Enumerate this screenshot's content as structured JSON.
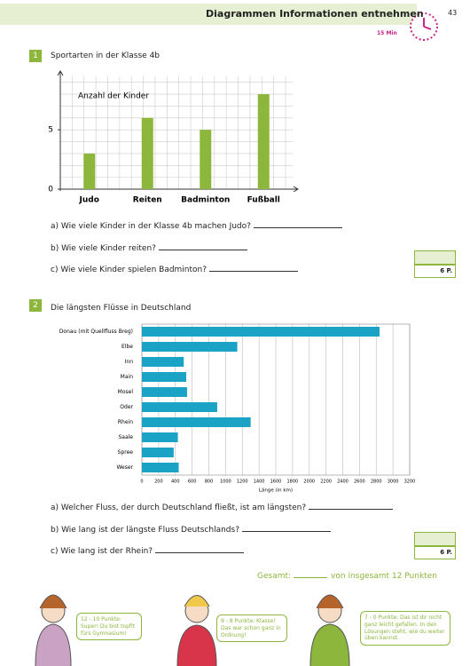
{
  "header": {
    "title": "Diagrammen Informationen entnehmen",
    "time": "15 Min",
    "page": "43"
  },
  "task1": {
    "number": "1",
    "title": "Sportarten in der Klasse 4b",
    "questions": [
      "a) Wie viele Kinder in der Klasse 4b machen Judo?",
      "b) Wie viele Kinder reiten?",
      "c) Wie viele Kinder spielen Badminton?"
    ],
    "score": "6 P."
  },
  "task2": {
    "number": "2",
    "title": "Die längsten Flüsse in Deutschland",
    "questions": [
      "a) Welcher Fluss, der durch Deutschland fließt, ist am längsten?",
      "b) Wie lang ist der längste Fluss Deutschlands?",
      "c) Wie lang ist der Rhein?"
    ],
    "score": "6 P."
  },
  "chart_data": [
    {
      "type": "bar",
      "ylabel": "Anzahl der Kinder",
      "categories": [
        "Judo",
        "Reiten",
        "Badminton",
        "Fußball"
      ],
      "values": [
        3,
        6,
        5,
        8
      ],
      "color": "#8db63c",
      "ylim": [
        0,
        9.5
      ],
      "yticks": [
        0,
        5
      ],
      "grid": true
    },
    {
      "type": "hbar",
      "xlabel": "Länge (in km)",
      "categories": [
        "Donau (mit Quellfluss Breg)",
        "Elbe",
        "Inn",
        "Main",
        "Mosel",
        "Oder",
        "Rhein",
        "Saale",
        "Spree",
        "Weser"
      ],
      "values": [
        2840,
        1140,
        500,
        530,
        540,
        900,
        1300,
        430,
        380,
        440
      ],
      "color": "#1ba3c6",
      "xlim": [
        0,
        3200
      ],
      "xticks": [
        0,
        200,
        400,
        600,
        800,
        1000,
        1200,
        1400,
        1600,
        1800,
        2000,
        2200,
        2400,
        2600,
        2800,
        3000,
        3200
      ],
      "grid": true
    }
  ],
  "footer": {
    "total_label": "Gesamt:",
    "total_text": "von insgesamt 12 Punkten",
    "feedback": [
      "12 - 10 Punkte: Super! Du bist topfit fürs Gymnasium!",
      "9 - 8 Punkte: Klasse! Das war schon ganz in Ordnung!",
      "7 - 0 Punkte: Das ist dir nicht ganz leicht gefallen. In den Lösungen steht, wie du weiter üben kannst."
    ]
  }
}
